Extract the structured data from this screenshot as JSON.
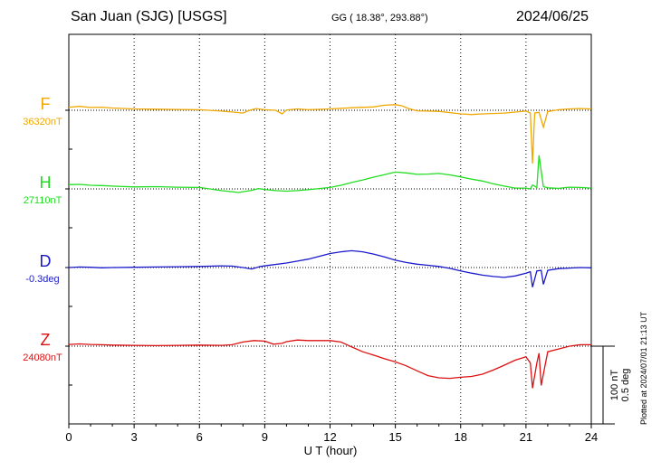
{
  "header": {
    "station": "San Juan (SJG)  [USGS]",
    "coords": "GG ( 18.38°, 293.88°)",
    "date": "2024/06/25"
  },
  "footer": {
    "plotted": "Plotted at 2024/07/01 21:13 UT"
  },
  "chart_data": {
    "type": "line",
    "title": "San Juan (SJG)  [USGS]",
    "xlabel": "U T (hour)",
    "xlim": [
      0,
      24
    ],
    "xticks": [
      0,
      3,
      6,
      9,
      12,
      15,
      18,
      21,
      24
    ],
    "grid": true,
    "scale_bar": [
      "100 nT",
      "0.5 deg"
    ],
    "series": [
      {
        "name": "F",
        "baseline_label": "36320nT",
        "color": "#f0a800",
        "x": [
          0,
          0.5,
          1,
          1.5,
          2,
          3,
          4,
          5,
          6,
          7,
          7.5,
          8,
          8.3,
          8.6,
          9,
          9.5,
          9.8,
          10,
          10.5,
          11,
          12,
          13,
          14,
          14.5,
          15,
          15.3,
          15.6,
          16,
          17,
          18,
          18.5,
          19,
          20,
          21,
          21.2,
          21.3,
          21.4,
          21.6,
          21.8,
          22,
          22.5,
          23,
          23.5,
          24
        ],
        "y": [
          1.1,
          1.4,
          1.0,
          1.1,
          0.8,
          0.5,
          0.4,
          0.3,
          0.2,
          -0.3,
          -0.6,
          -1.0,
          0.0,
          0.6,
          0.2,
          0.0,
          -1.3,
          0.1,
          0.5,
          0.2,
          0.5,
          0.9,
          1.2,
          1.8,
          2.0,
          1.6,
          0.6,
          -0.2,
          -0.4,
          -1.3,
          -1.5,
          -1.3,
          -1.0,
          -0.3,
          -1.0,
          -19.0,
          -1.0,
          -0.7,
          -6.0,
          -0.5,
          0.2,
          0.5,
          0.6,
          0.5
        ]
      },
      {
        "name": "H",
        "baseline_label": "27110nT",
        "color": "#22dd22",
        "x": [
          0,
          0.5,
          1,
          1.5,
          2,
          3,
          4,
          5,
          6,
          7,
          7.5,
          7.8,
          8,
          8.4,
          8.7,
          9,
          9.5,
          10,
          10.5,
          11,
          12,
          12.5,
          13,
          13.5,
          14,
          14.5,
          15,
          15.5,
          16,
          16.5,
          17,
          17.5,
          18,
          18.5,
          19,
          19.5,
          20,
          20.5,
          21,
          21.2,
          21.3,
          21.5,
          21.6,
          21.8,
          22,
          22.5,
          23,
          23.5,
          24
        ],
        "y": [
          1.5,
          1.6,
          1.3,
          1.2,
          1.0,
          0.7,
          0.8,
          0.6,
          0.5,
          -0.6,
          -1.0,
          -1.3,
          -1.0,
          -0.5,
          0.1,
          -0.2,
          -0.6,
          -0.8,
          -0.6,
          -0.3,
          0.5,
          1.3,
          2.3,
          3.2,
          4.2,
          5.1,
          6.0,
          5.7,
          5.2,
          5.3,
          5.5,
          5.0,
          4.3,
          3.5,
          2.8,
          1.8,
          1.0,
          0.3,
          0.3,
          0.0,
          1.4,
          0.5,
          12.0,
          0.8,
          0.4,
          0.2,
          0.6,
          0.5,
          0.3
        ]
      },
      {
        "name": "D",
        "baseline_label": "-0.3deg",
        "color": "#1a1acc",
        "x": [
          0,
          0.5,
          1,
          1.5,
          2,
          3,
          4,
          5,
          6,
          7,
          7.5,
          8,
          8.4,
          8.8,
          9.3,
          10,
          10.5,
          11,
          11.5,
          12,
          12.5,
          13,
          13.5,
          14,
          14.5,
          15,
          15.5,
          16,
          16.5,
          17,
          17.5,
          18,
          18.5,
          19,
          19.5,
          20,
          20.5,
          21,
          21.2,
          21.3,
          21.5,
          21.7,
          21.8,
          22,
          22.5,
          23,
          23.5,
          24
        ],
        "y": [
          0.0,
          0.2,
          0.1,
          -0.1,
          0.0,
          0.1,
          0.2,
          0.3,
          0.4,
          0.6,
          0.5,
          0.0,
          -0.5,
          0.4,
          0.9,
          1.6,
          2.3,
          3.0,
          4.0,
          5.0,
          5.6,
          6.0,
          5.6,
          4.8,
          3.8,
          2.6,
          1.8,
          1.2,
          0.8,
          0.4,
          -0.3,
          -1.2,
          -2.0,
          -2.7,
          -3.2,
          -3.5,
          -3.0,
          -2.0,
          -1.5,
          -7.0,
          -1.2,
          -1.0,
          -6.0,
          -1.0,
          -0.4,
          -0.2,
          0.0,
          -0.1
        ]
      },
      {
        "name": "Z",
        "baseline_label": "24080nT",
        "color": "#dd1111",
        "x": [
          0,
          0.5,
          1,
          1.5,
          2,
          3,
          4,
          5,
          6,
          7,
          7.5,
          8,
          8.5,
          9,
          9.4,
          9.8,
          10,
          10.5,
          11,
          12,
          12.5,
          13,
          13.5,
          14,
          14.5,
          15,
          15.5,
          16,
          16.5,
          17,
          17.5,
          18,
          18.5,
          19,
          19.5,
          20,
          20.5,
          21,
          21.2,
          21.3,
          21.5,
          21.6,
          21.7,
          22,
          22.5,
          23,
          23.5,
          24
        ],
        "y": [
          0.6,
          0.8,
          0.6,
          0.5,
          0.4,
          0.3,
          0.2,
          0.3,
          0.4,
          0.3,
          0.5,
          1.5,
          2.0,
          1.8,
          0.7,
          1.0,
          1.6,
          2.2,
          2.0,
          2.0,
          1.5,
          -0.3,
          -2.0,
          -3.2,
          -4.5,
          -5.6,
          -7.0,
          -8.8,
          -10.5,
          -11.3,
          -11.5,
          -11.1,
          -10.8,
          -10.0,
          -8.5,
          -6.8,
          -5.0,
          -3.8,
          -6.0,
          -15.0,
          -6.0,
          -2.5,
          -14.0,
          -2.0,
          -1.0,
          0.0,
          0.5,
          0.5
        ]
      }
    ]
  }
}
